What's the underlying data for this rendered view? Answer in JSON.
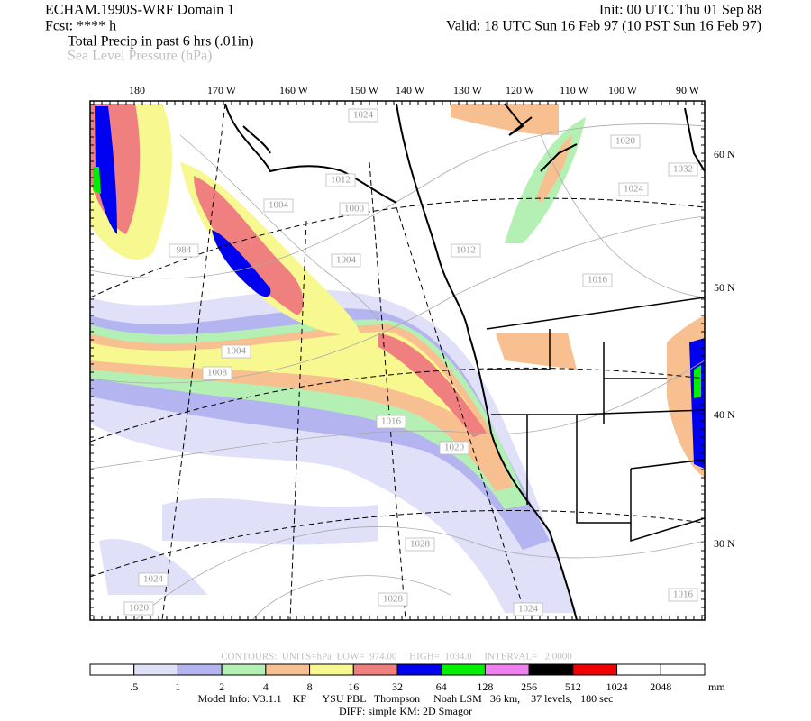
{
  "header": {
    "title": "ECHAM.1990S-WRF Domain 1",
    "init": "Init: 00 UTC Thu 01 Sep 88",
    "fcst": "Fcst: **** h",
    "valid": "Valid: 18 UTC Sun 16 Feb 97 (10 PST Sun 16 Feb 97)",
    "field1": "Total Precip in past 6 hrs (.01in)",
    "field2": "Sea Level Pressure (hPa)"
  },
  "map": {
    "lon_labels": [
      "180",
      "170 W",
      "160 W",
      "150 W",
      "140 W",
      "130 W",
      "120 W",
      "110 W",
      "100 W",
      "90 W"
    ],
    "lat_labels": [
      "60 N",
      "50 N",
      "40 N",
      "30 N"
    ],
    "contour_labels": [
      "1024",
      "1020",
      "1024",
      "1016",
      "1012",
      "1004",
      "1000",
      "1004",
      "984",
      "1012",
      "1016",
      "1020",
      "1028",
      "1028",
      "1024",
      "1024",
      "1032",
      "1016",
      "1020",
      "1008",
      "1004"
    ]
  },
  "contours_info": "CONTOURS:  UNITS=hPa  LOW=  974.00     HIGH=  1034.0     INTERVAL=   2.0000",
  "colorbar": {
    "colors": [
      "#ffffff",
      "#e0e0f8",
      "#b4b4f0",
      "#b4f0b4",
      "#f8c090",
      "#f8f890",
      "#f08080",
      "#0000f0",
      "#00f000",
      "#f080f0",
      "#000000",
      "#f00000",
      "#ffffff",
      "#ffffff"
    ],
    "labels": [
      ".5",
      "1",
      "2",
      "4",
      "8",
      "16",
      "32",
      "64",
      "128",
      "256",
      "512",
      "1024",
      "2048"
    ],
    "unit": "mm"
  },
  "footer": {
    "model_info": "Model Info: V3.1.1    KF      YSU PBL   Thompson     Noah LSM   36 km,    37 levels,   180 sec",
    "diff": "DIFF: simple KM: 2D Smagor"
  }
}
